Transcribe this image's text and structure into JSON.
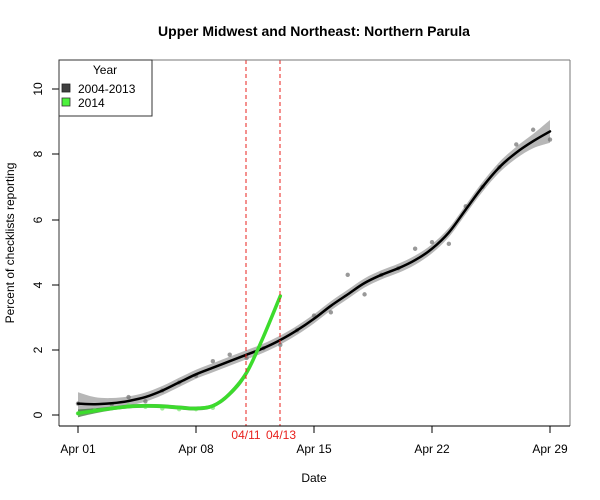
{
  "chart_data": {
    "type": "line",
    "title": "Upper Midwest and Northeast: Northern Parula",
    "xlabel": "Date",
    "ylabel": "Percent of checklists reporting",
    "x_ticks": [
      {
        "label": "Apr 01",
        "day": 1
      },
      {
        "label": "Apr 08",
        "day": 8
      },
      {
        "label": "Apr 15",
        "day": 15
      },
      {
        "label": "Apr 22",
        "day": 22
      },
      {
        "label": "Apr 29",
        "day": 29
      }
    ],
    "y_ticks": [
      0,
      2,
      4,
      6,
      8,
      10
    ],
    "xlim": [
      0.0,
      30.2
    ],
    "ylim": [
      -0.35,
      11.0
    ],
    "grid": false,
    "legend": {
      "title": "Year",
      "position": "top-left",
      "entries": [
        {
          "label": "2004-2013",
          "color": "#404040"
        },
        {
          "label": "2014",
          "color": "#4cf23c"
        }
      ]
    },
    "vertical_lines": [
      {
        "label": "04/11",
        "day": 11,
        "color": "#e8201c"
      },
      {
        "label": "04/13",
        "day": 13,
        "color": "#e8201c"
      }
    ],
    "series": [
      {
        "name": "2004-2013",
        "color": "#000000",
        "band_color": "#b3b3b3",
        "x": [
          1,
          2,
          3,
          4,
          5,
          6,
          7,
          8,
          9,
          10,
          11,
          12,
          13,
          14,
          15,
          16,
          17,
          18,
          19,
          20,
          21,
          22,
          23,
          24,
          25,
          26,
          27,
          28,
          29
        ],
        "values": [
          0.35,
          0.33,
          0.36,
          0.43,
          0.55,
          0.75,
          1.0,
          1.25,
          1.45,
          1.65,
          1.85,
          2.05,
          2.3,
          2.6,
          2.95,
          3.35,
          3.7,
          4.05,
          4.3,
          4.5,
          4.75,
          5.1,
          5.6,
          6.3,
          7.0,
          7.6,
          8.05,
          8.4,
          8.7
        ],
        "band_halfwidth": [
          0.35,
          0.22,
          0.16,
          0.14,
          0.14,
          0.14,
          0.14,
          0.14,
          0.14,
          0.14,
          0.14,
          0.14,
          0.14,
          0.14,
          0.14,
          0.14,
          0.14,
          0.14,
          0.14,
          0.14,
          0.14,
          0.14,
          0.14,
          0.14,
          0.15,
          0.16,
          0.18,
          0.22,
          0.35
        ]
      },
      {
        "name": "2014",
        "color": "#3cdc2c",
        "band_color": "#3a7a34",
        "x": [
          1,
          2,
          3,
          4,
          5,
          6,
          7,
          8,
          9,
          10,
          11,
          12,
          13
        ],
        "values": [
          0.05,
          0.13,
          0.2,
          0.26,
          0.28,
          0.27,
          0.23,
          0.2,
          0.28,
          0.65,
          1.3,
          2.4,
          3.65
        ],
        "band_halfwidth": [
          0.12,
          0.08,
          0.06,
          0.06,
          0.06,
          0.06,
          0.06,
          0.06,
          0.06,
          0.08,
          0.1,
          0.1,
          0.1
        ]
      }
    ],
    "points_2004_2013": [
      [
        1,
        0.35
      ],
      [
        2,
        0.15
      ],
      [
        3,
        0.33
      ],
      [
        4,
        0.55
      ],
      [
        5,
        0.42
      ],
      [
        6,
        0.75
      ],
      [
        7,
        1.0
      ],
      [
        8,
        1.2
      ],
      [
        9,
        1.65
      ],
      [
        10,
        1.85
      ],
      [
        11,
        1.75
      ],
      [
        12,
        2.05
      ],
      [
        13,
        2.15
      ],
      [
        14,
        2.6
      ],
      [
        15,
        3.05
      ],
      [
        16,
        3.15
      ],
      [
        17,
        4.3
      ],
      [
        18,
        3.7
      ],
      [
        19,
        4.3
      ],
      [
        20,
        4.5
      ],
      [
        21,
        5.1
      ],
      [
        22,
        5.3
      ],
      [
        23,
        5.25
      ],
      [
        24,
        6.4
      ],
      [
        25,
        7.0
      ],
      [
        26,
        7.6
      ],
      [
        27,
        8.3
      ],
      [
        28,
        8.75
      ],
      [
        29,
        8.45
      ]
    ],
    "points_2014": [
      [
        1,
        0.05
      ],
      [
        2,
        0.15
      ],
      [
        3,
        0.22
      ],
      [
        4,
        0.3
      ],
      [
        5,
        0.25
      ],
      [
        6,
        0.2
      ],
      [
        7,
        0.18
      ],
      [
        8,
        0.18
      ],
      [
        9,
        0.22
      ]
    ]
  },
  "labels": {
    "title": "Upper Midwest and Northeast: Northern Parula",
    "xlabel": "Date",
    "ylabel": "Percent of checklists reporting",
    "legend_title": "Year",
    "legend_1": "2004-2013",
    "legend_2": "2014",
    "vline_1": "04/11",
    "vline_2": "04/13",
    "xt0": "Apr 01",
    "xt1": "Apr 08",
    "xt2": "Apr 15",
    "xt3": "Apr 22",
    "xt4": "Apr 29",
    "yt0": "0",
    "yt1": "2",
    "yt2": "4",
    "yt3": "6",
    "yt4": "8",
    "yt5": "10"
  }
}
